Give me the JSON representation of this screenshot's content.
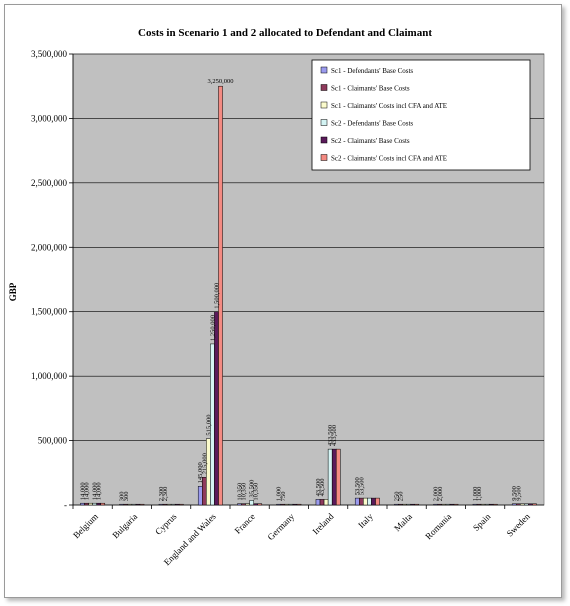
{
  "chart_data": {
    "type": "bar",
    "title": "Costs in Scenario 1 and 2 allocated to Defendant and Claimant",
    "xlabel": "",
    "ylabel": "GBP",
    "ylim": [
      0,
      3500000
    ],
    "yticks": [
      "-",
      "500,000",
      "1,000,000",
      "1,500,000",
      "2,000,000",
      "2,500,000",
      "3,000,000",
      "3,500,000"
    ],
    "grid": true,
    "legend_position": "top-right",
    "categories": [
      "Belgium",
      "Bulgaria",
      "Cyprus",
      "England and Wales",
      "France",
      "Germany",
      "Ireland",
      "Italy",
      "Malta",
      "Romania",
      "Spain",
      "Sweden"
    ],
    "series": [
      {
        "name": "Sc1 - Defendants' Base Costs",
        "color": "#9a9aee",
        "values": [
          14000,
          300,
          2300,
          145000,
          10350,
          1000,
          43500,
          53500,
          250,
          2000,
          1000,
          9500
        ],
        "labels": [
          "14,000",
          "300",
          "2,300",
          "145,000",
          "10,350",
          "1,000",
          "43,500",
          "53,500",
          "250",
          "2,000",
          "1,000",
          "9,500"
        ]
      },
      {
        "name": "Sc1 - Claimants' Base Costs",
        "color": "#8e3a5c",
        "values": [
          14000,
          300,
          2300,
          215000,
          10350,
          750,
          43500,
          53500,
          250,
          2000,
          1000,
          9500
        ],
        "labels": [
          "14,000",
          "300",
          "2,300",
          "215,000",
          "10,350",
          "750",
          "43,500",
          "53,500",
          "250",
          "2,000",
          "1,000",
          "9,500"
        ]
      },
      {
        "name": "Sc1 - Claimants' Costs incl CFA and ATE",
        "color": "#fbfbcc",
        "values": [
          14000,
          300,
          2300,
          515000,
          10350,
          750,
          43500,
          53500,
          250,
          2000,
          1000,
          9500
        ],
        "labels": [
          "",
          "",
          "",
          "515,000",
          "",
          "",
          "",
          "",
          "",
          "",
          "",
          ""
        ]
      },
      {
        "name": "Sc2 - Defendants' Base Costs",
        "color": "#d4f4f4",
        "values": [
          14000,
          300,
          2300,
          1250000,
          35500,
          1000,
          433500,
          53500,
          250,
          2000,
          1000,
          9500
        ],
        "labels": [
          "14,000",
          "",
          "",
          "1,250,000",
          "35,500",
          "",
          "433,500",
          "",
          "",
          "",
          "",
          ""
        ]
      },
      {
        "name": "Sc2 - Claimants' Base Costs",
        "color": "#5a1a5a",
        "values": [
          14000,
          300,
          2300,
          1500000,
          10350,
          750,
          433500,
          53500,
          250,
          2000,
          1000,
          9500
        ],
        "labels": [
          "14,000",
          "",
          "",
          "1,500,000",
          "10,350",
          "",
          "433,500",
          "",
          "",
          "",
          "",
          ""
        ]
      },
      {
        "name": "Sc2 - Claimants' Costs incl CFA and ATE",
        "color": "#f48a82",
        "values": [
          14000,
          300,
          2300,
          3250000,
          10350,
          750,
          433500,
          53500,
          250,
          2000,
          1000,
          9500
        ],
        "labels": [
          "",
          "",
          "",
          "3,250,000",
          "",
          "",
          "",
          "",
          "",
          "",
          "",
          ""
        ]
      }
    ]
  }
}
